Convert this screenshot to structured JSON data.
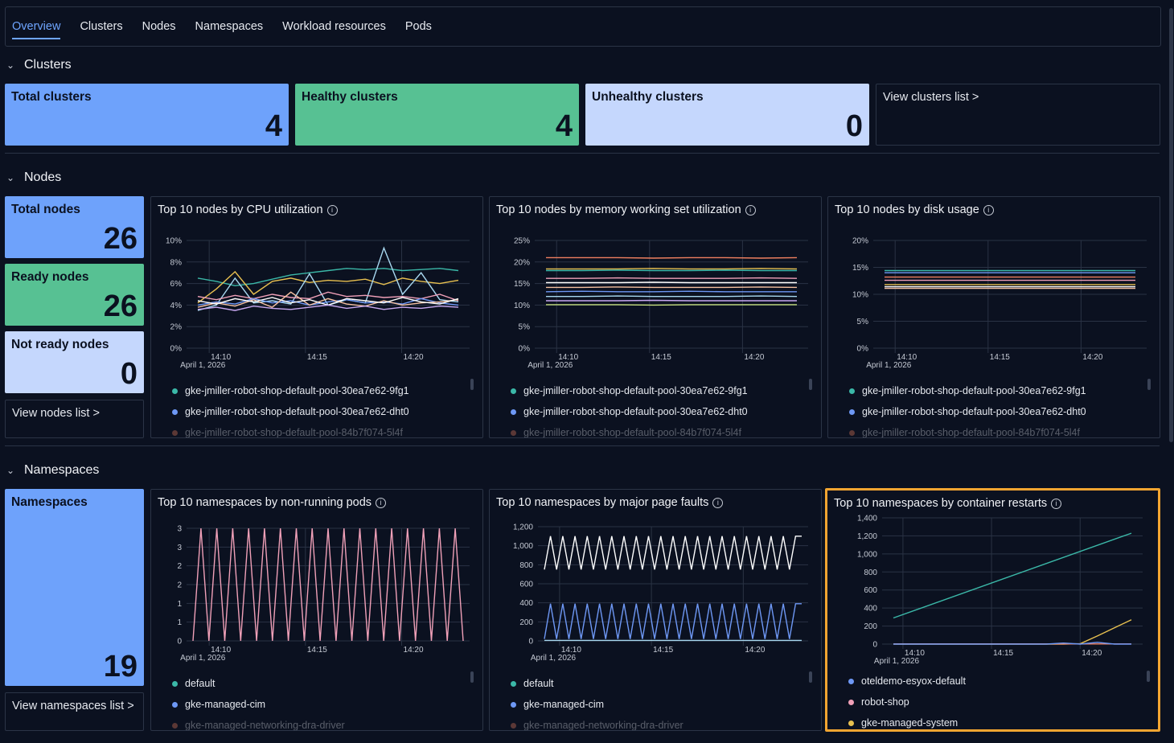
{
  "tabs": [
    "Overview",
    "Clusters",
    "Nodes",
    "Namespaces",
    "Workload resources",
    "Pods"
  ],
  "clusters": {
    "title": "Clusters",
    "total": {
      "label": "Total clusters",
      "value": "4"
    },
    "healthy": {
      "label": "Healthy clusters",
      "value": "4"
    },
    "unhealthy": {
      "label": "Unhealthy clusters",
      "value": "0"
    },
    "link": "View clusters list >"
  },
  "nodes": {
    "title": "Nodes",
    "total": {
      "label": "Total nodes",
      "value": "26"
    },
    "ready": {
      "label": "Ready nodes",
      "value": "26"
    },
    "not_ready": {
      "label": "Not ready nodes",
      "value": "0"
    },
    "link": "View nodes list >",
    "legend": [
      "gke-jmiller-robot-shop-default-pool-30ea7e62-9fg1",
      "gke-jmiller-robot-shop-default-pool-30ea7e62-dht0",
      "gke-jmiller-robot-shop-default-pool-84b7f074-5l4f"
    ]
  },
  "namespaces": {
    "title": "Namespaces",
    "total": {
      "label": "Namespaces",
      "value": "19"
    },
    "link": "View namespaces list >"
  },
  "colors": {
    "teal": "#3bb8a8",
    "blue": "#6e98f5",
    "pink": "#f0a0b8",
    "yellow": "#e8c050",
    "accent": "#6ea5ff",
    "highlight": "#f2a531"
  },
  "chart_data": [
    {
      "type": "line",
      "title": "Top 10 nodes by CPU utilization",
      "yticks": [
        "10%",
        "8%",
        "6%",
        "4%",
        "2%",
        "0%"
      ],
      "xticks": [
        "14:10",
        "14:15",
        "14:20"
      ],
      "date_label": "April 1, 2026",
      "ylim": [
        0,
        10
      ],
      "series": [
        {
          "color": "#3bb8a8",
          "values": [
            6.5,
            6.2,
            5.8,
            6.0,
            6.4,
            6.8,
            7.0,
            7.2,
            7.4,
            7.3,
            7.4,
            7.2,
            7.3,
            7.4,
            7.2
          ]
        },
        {
          "color": "#e8c050",
          "values": [
            4.2,
            5.5,
            7.1,
            5.0,
            6.2,
            6.5,
            6.1,
            6.3,
            6.2,
            6.4,
            5.9,
            6.5,
            6.2,
            6.0,
            6.3
          ]
        },
        {
          "color": "#a8d8f0",
          "values": [
            3.5,
            4.0,
            6.5,
            4.2,
            4.4,
            4.1,
            6.9,
            4.0,
            4.5,
            4.2,
            9.3,
            5.0,
            7.0,
            4.5,
            4.3
          ]
        },
        {
          "color": "#f0a0b8",
          "values": [
            4.8,
            4.5,
            4.9,
            4.6,
            5.0,
            4.7,
            4.6,
            5.2,
            4.8,
            4.9,
            4.7,
            4.8,
            4.6,
            5.0,
            4.4
          ]
        },
        {
          "color": "#6e98f5",
          "values": [
            4.0,
            4.3,
            4.1,
            4.6,
            4.2,
            4.4,
            4.0,
            4.3,
            4.5,
            4.2,
            4.3,
            4.1,
            4.6,
            4.2,
            4.0
          ]
        },
        {
          "color": "#f5c0a0",
          "values": [
            3.8,
            4.2,
            3.9,
            4.5,
            3.8,
            5.2,
            4.0,
            4.6,
            4.1,
            3.9,
            4.4,
            4.0,
            4.2,
            4.3,
            4.5
          ]
        },
        {
          "color": "#ffffff",
          "values": [
            4.4,
            4.1,
            4.6,
            4.3,
            4.7,
            4.2,
            4.5,
            4.0,
            4.6,
            4.4,
            4.2,
            4.7,
            4.3,
            4.1,
            4.6
          ]
        },
        {
          "color": "#c8a8f0",
          "values": [
            3.6,
            3.8,
            3.5,
            3.9,
            3.7,
            3.6,
            3.8,
            4.0,
            3.7,
            3.9,
            3.6,
            3.8,
            3.7,
            3.9,
            3.8
          ]
        }
      ]
    },
    {
      "type": "line",
      "title": "Top 10 nodes by memory working set utilization",
      "yticks": [
        "25%",
        "20%",
        "15%",
        "10%",
        "5%",
        "0%"
      ],
      "xticks": [
        "14:10",
        "14:15",
        "14:20"
      ],
      "date_label": "April 1, 2026",
      "ylim": [
        0,
        25
      ],
      "series": [
        {
          "color": "#f08060",
          "values": [
            21.0,
            21.0,
            21.0,
            20.9,
            21.0,
            21.0,
            20.9,
            21.0
          ]
        },
        {
          "color": "#e8c050",
          "values": [
            18.4,
            18.4,
            18.4,
            18.5,
            18.4,
            18.4,
            18.5,
            18.4
          ]
        },
        {
          "color": "#3bb8a8",
          "values": [
            18.0,
            18.0,
            18.1,
            18.0,
            18.0,
            18.1,
            18.0,
            18.0
          ]
        },
        {
          "color": "#f0a0b8",
          "values": [
            16.2,
            16.2,
            16.3,
            16.2,
            16.2,
            16.2,
            16.3,
            16.2
          ]
        },
        {
          "color": "#ffffff",
          "values": [
            15.2,
            15.2,
            15.2,
            15.3,
            15.2,
            15.2,
            15.2,
            15.2
          ]
        },
        {
          "color": "#f5c0a0",
          "values": [
            14.1,
            14.1,
            14.2,
            14.1,
            14.1,
            14.1,
            14.2,
            14.1
          ]
        },
        {
          "color": "#6e98f5",
          "values": [
            13.1,
            13.2,
            13.1,
            13.1,
            13.2,
            13.1,
            13.1,
            13.1
          ]
        },
        {
          "color": "#a8d8f0",
          "values": [
            12.0,
            12.0,
            12.1,
            12.0,
            12.0,
            12.0,
            12.1,
            12.0
          ]
        },
        {
          "color": "#c8a8f0",
          "values": [
            11.0,
            11.0,
            11.0,
            11.1,
            11.0,
            11.0,
            11.0,
            11.0
          ]
        },
        {
          "color": "#c8e080",
          "values": [
            10.1,
            10.1,
            10.1,
            10.0,
            10.1,
            10.1,
            10.1,
            10.1
          ]
        }
      ]
    },
    {
      "type": "line",
      "title": "Top 10 nodes by disk usage",
      "yticks": [
        "20%",
        "15%",
        "10%",
        "5%",
        "0%"
      ],
      "xticks": [
        "14:10",
        "14:15",
        "14:20"
      ],
      "date_label": "April 1, 2026",
      "ylim": [
        0,
        20
      ],
      "series": [
        {
          "color": "#3bb8a8",
          "values": [
            14.4,
            14.4,
            14.4,
            14.4,
            14.4,
            14.4
          ]
        },
        {
          "color": "#6e98f5",
          "values": [
            14.0,
            14.0,
            14.0,
            14.0,
            14.0,
            14.0
          ]
        },
        {
          "color": "#f08060",
          "values": [
            13.2,
            13.2,
            13.2,
            13.2,
            13.2,
            13.2
          ]
        },
        {
          "color": "#f0a0b8",
          "values": [
            12.6,
            12.6,
            12.6,
            12.6,
            12.6,
            12.6
          ]
        },
        {
          "color": "#e8c050",
          "values": [
            11.8,
            11.8,
            11.8,
            11.8,
            11.8,
            11.8
          ]
        },
        {
          "color": "#ffffff",
          "values": [
            11.4,
            11.4,
            11.4,
            11.4,
            11.4,
            11.4
          ]
        },
        {
          "color": "#f5c0a0",
          "values": [
            11.1,
            11.1,
            11.1,
            11.1,
            11.1,
            11.1
          ]
        }
      ]
    },
    {
      "type": "line",
      "title": "Top 10 namespaces by non-running pods",
      "yticks": [
        "3",
        "3",
        "2",
        "2",
        "1",
        "1",
        "0"
      ],
      "xticks": [
        "14:10",
        "14:15",
        "14:20"
      ],
      "date_label": "April 1, 2026",
      "ylim": [
        0,
        3
      ],
      "series": [
        {
          "color": "#f0a0b8",
          "values": [
            0,
            3,
            0,
            3,
            0,
            3,
            0,
            3,
            0,
            3,
            0,
            3,
            0,
            3,
            0,
            3,
            0,
            3,
            0,
            3,
            0,
            3,
            0,
            3,
            0,
            3,
            0,
            3,
            0,
            3,
            0,
            3,
            0,
            3,
            0
          ]
        }
      ],
      "legend": [
        "default",
        "gke-managed-cim",
        "gke-managed-networking-dra-driver"
      ]
    },
    {
      "type": "line",
      "title": "Top 10 namespaces by major page faults",
      "yticks": [
        "1,200",
        "1,000",
        "800",
        "600",
        "400",
        "200",
        "0"
      ],
      "xticks": [
        "14:10",
        "14:15",
        "14:20"
      ],
      "date_label": "April 1, 2026",
      "ylim": [
        0,
        1200
      ],
      "series": [
        {
          "color": "#ffffff",
          "values": [
            750,
            1100,
            750,
            1100,
            750,
            1100,
            750,
            1100,
            750,
            1100,
            750,
            1100,
            750,
            1100,
            750,
            1100,
            750,
            1100,
            750,
            1100,
            750,
            1100,
            750,
            1100,
            750,
            1100,
            750,
            1100,
            750,
            1100,
            750,
            1100,
            750,
            1100,
            750,
            1100,
            750,
            1100,
            750,
            1100,
            750,
            1100,
            1100
          ]
        },
        {
          "color": "#6e98f5",
          "values": [
            20,
            390,
            20,
            390,
            20,
            390,
            20,
            390,
            20,
            390,
            20,
            390,
            20,
            390,
            20,
            390,
            20,
            390,
            20,
            390,
            20,
            390,
            20,
            390,
            20,
            390,
            20,
            390,
            20,
            390,
            20,
            390,
            20,
            390,
            20,
            390,
            20,
            390,
            20,
            390,
            20,
            390,
            390
          ]
        },
        {
          "color": "#a8d8f0",
          "values": [
            5,
            5,
            5,
            5,
            5,
            5,
            5,
            5
          ]
        }
      ],
      "legend": [
        "default",
        "gke-managed-cim",
        "gke-managed-networking-dra-driver"
      ]
    },
    {
      "type": "line",
      "title": "Top 10 namespaces by container restarts",
      "yticks": [
        "1,400",
        "1,200",
        "1,000",
        "800",
        "600",
        "400",
        "200",
        "0"
      ],
      "xticks": [
        "14:10",
        "14:15",
        "14:20"
      ],
      "date_label": "April 1, 2026",
      "ylim": [
        0,
        1400
      ],
      "series": [
        {
          "color": "#3bb8a8",
          "values": [
            290,
            1230
          ]
        },
        {
          "color": "#e8c050",
          "values": [
            0,
            0,
            0,
            0,
            0,
            0,
            0,
            0,
            0,
            0,
            0,
            5,
            90,
            180,
            270
          ]
        },
        {
          "color": "#f08060",
          "values": [
            2,
            2
          ]
        },
        {
          "color": "#6e98f5",
          "values": [
            0,
            0,
            0,
            0,
            0,
            0,
            0,
            0,
            0,
            0,
            12,
            0,
            20,
            0,
            0
          ]
        }
      ],
      "legend": [
        "oteldemo-esyox-default",
        "robot-shop",
        "gke-managed-system"
      ]
    }
  ]
}
